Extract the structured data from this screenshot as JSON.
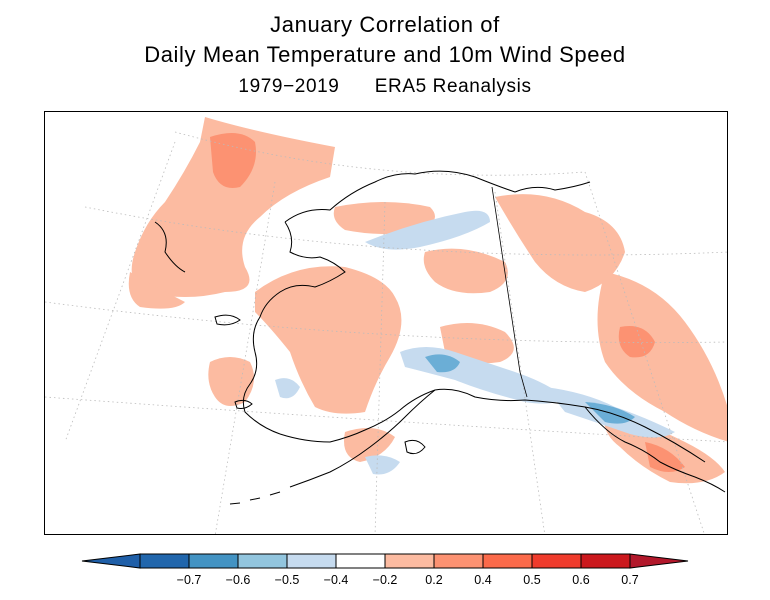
{
  "title": {
    "line1": "January Correlation of",
    "line2": "Daily Mean Temperature and 10m Wind Speed",
    "line3": "1979−2019      ERA5 Reanalysis"
  },
  "colorbar": {
    "labels": [
      "−0.7",
      "−0.6",
      "−0.5",
      "−0.4",
      "−0.2",
      "0.2",
      "0.4",
      "0.5",
      "0.6",
      "0.7"
    ],
    "colors": [
      "#2166ac",
      "#4393c3",
      "#92c5de",
      "#c6dbef",
      "#ffffff",
      "#fcbba1",
      "#fc9272",
      "#fb6a4a",
      "#ef3b2c",
      "#cb181d"
    ],
    "under_color": "#1f5fa8",
    "over_color": "#b2182b"
  },
  "map": {
    "region": "Alaska",
    "colors": {
      "ocean": "#ffffff",
      "positive": "#fcbba1",
      "strong_positive": "#fc9272",
      "negative": "#c6dbef",
      "strong_negative": "#6baed6",
      "coast": "#000000",
      "grid": "#bbbbbb"
    }
  }
}
